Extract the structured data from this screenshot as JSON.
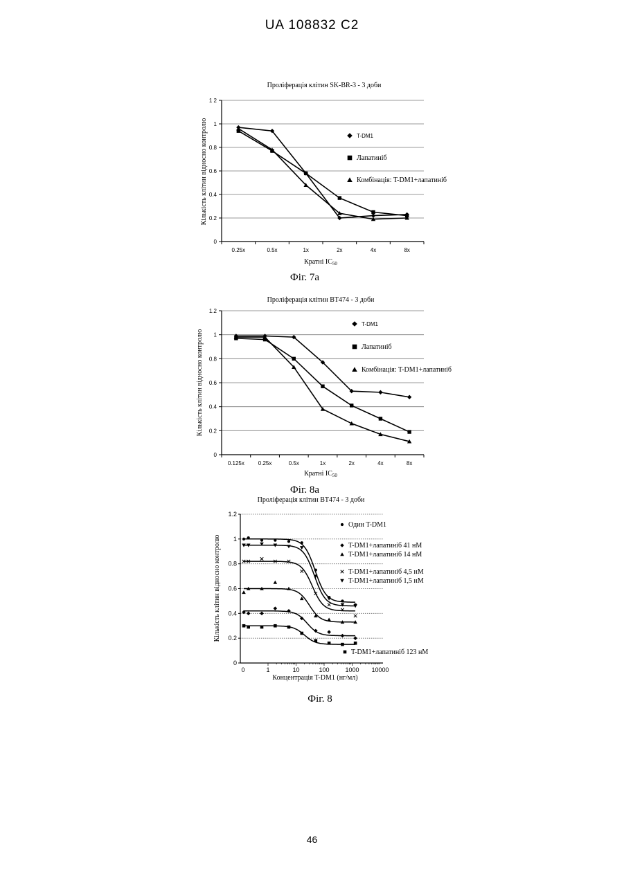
{
  "header": "UA   108832   C2",
  "page_number": "46",
  "chart_data": [
    {
      "type": "line",
      "title": "Проліферація клітин SK-BR-3 - 3 доби",
      "ylabel": "Кількість клітин відносно контролю",
      "xlabel_main": "Кратні IC",
      "xlabel_sub": "50",
      "caption": "Фіг. 7а",
      "categories": [
        "0.25x",
        "0.5x",
        "1x",
        "2x",
        "4x",
        "8x"
      ],
      "ylim": [
        0,
        1.2
      ],
      "yticks": [
        "0",
        "0.2",
        "0.4",
        "0.6",
        "0.8",
        "1",
        "1 2"
      ],
      "legend_placement": "right",
      "series": [
        {
          "name": "T-DM1",
          "marker": "diamond",
          "values": [
            0.97,
            0.94,
            0.58,
            0.2,
            0.22,
            0.23
          ]
        },
        {
          "name": "Лапатиніб",
          "marker": "square",
          "values": [
            0.94,
            0.77,
            0.58,
            0.37,
            0.25,
            0.22
          ]
        },
        {
          "name": "Комбінація: T-DM1+лапатиніб",
          "marker": "triangle",
          "values": [
            0.96,
            0.78,
            0.48,
            0.24,
            0.19,
            0.2
          ]
        }
      ]
    },
    {
      "type": "line",
      "title": "Проліферація клітин BT474 - 3 доби",
      "ylabel": "Кількість клітин відносно контролю",
      "xlabel_main": "Кратні IC",
      "xlabel_sub": "50",
      "caption": "Фіг. 8а",
      "categories": [
        "0.125x",
        "0.25x",
        "0.5x",
        "1x",
        "2x",
        "4x",
        "8x"
      ],
      "ylim": [
        0,
        1.2
      ],
      "yticks": [
        "0",
        "0.2",
        "0.4",
        "0.6",
        "0.8",
        "1",
        "1.2"
      ],
      "legend_placement": "right",
      "series": [
        {
          "name": "T-DM1",
          "marker": "diamond",
          "values": [
            0.99,
            0.99,
            0.98,
            0.77,
            0.53,
            0.52,
            0.48
          ]
        },
        {
          "name": "Лапатиніб",
          "marker": "square",
          "values": [
            0.97,
            0.96,
            0.8,
            0.57,
            0.41,
            0.3,
            0.19
          ]
        },
        {
          "name": "Комбінація: T-DM1+лапатиніб",
          "marker": "triangle",
          "values": [
            0.98,
            0.98,
            0.73,
            0.38,
            0.26,
            0.17,
            0.11
          ]
        }
      ]
    },
    {
      "type": "scatter",
      "title": "Проліферація клітин BT474 - 3 доби",
      "ylabel": "Кількість клітин відносно контролю",
      "xlabel": "Концентрація T-DM1 (нг/мл)",
      "caption": "Фіг. 8",
      "x_scale": "log",
      "xticks": [
        "0",
        "1",
        "10",
        "100",
        "1000",
        "10000"
      ],
      "ylim": [
        0,
        1.2
      ],
      "yticks": [
        "0",
        "0.2",
        "0.4",
        "0.6",
        "0.8",
        "1",
        "1.2"
      ],
      "x": [
        0,
        0.2,
        0.6,
        1.8,
        5.5,
        16,
        50,
        150,
        450,
        1300
      ],
      "series": [
        {
          "name": "Один T-DM1",
          "marker": "circle",
          "values": [
            1.0,
            1.01,
            0.99,
            0.99,
            0.98,
            0.97,
            0.75,
            0.53,
            0.5,
            0.47
          ],
          "fit": {
            "top": 1.0,
            "bottom": 0.49,
            "ec50": 48
          }
        },
        {
          "name": "T-DM1+лапатиніб 41 нМ",
          "marker": "diamond",
          "values": [
            0.41,
            0.4,
            0.4,
            0.44,
            0.42,
            0.36,
            0.26,
            0.25,
            0.22,
            0.2
          ],
          "fit": {
            "top": 0.42,
            "bottom": 0.22,
            "ec50": 25
          }
        },
        {
          "name": "T-DM1+лапатиніб 14 нМ",
          "marker": "triangle",
          "values": [
            0.57,
            0.6,
            0.6,
            0.65,
            0.6,
            0.52,
            0.38,
            0.35,
            0.33,
            0.33
          ],
          "fit": {
            "top": 0.6,
            "bottom": 0.33,
            "ec50": 30
          }
        },
        {
          "name": "T-DM1+лапатиніб 4,5 нМ",
          "marker": "x",
          "values": [
            0.82,
            0.82,
            0.84,
            0.82,
            0.82,
            0.74,
            0.56,
            0.47,
            0.43,
            0.38
          ],
          "fit": {
            "top": 0.82,
            "bottom": 0.42,
            "ec50": 38
          }
        },
        {
          "name": "T-DM1+лапатиніб 1,5 нМ",
          "marker": "tri-down",
          "values": [
            0.95,
            0.95,
            0.96,
            0.95,
            0.94,
            0.93,
            0.7,
            0.52,
            0.47,
            0.46
          ],
          "fit": {
            "top": 0.95,
            "bottom": 0.46,
            "ec50": 45
          }
        },
        {
          "name": "T-DM1+лапатиніб 123 нМ",
          "marker": "square",
          "values": [
            0.3,
            0.29,
            0.29,
            0.3,
            0.29,
            0.24,
            0.18,
            0.16,
            0.15,
            0.16
          ],
          "fit": {
            "top": 0.3,
            "bottom": 0.15,
            "ec50": 20
          }
        }
      ]
    }
  ]
}
